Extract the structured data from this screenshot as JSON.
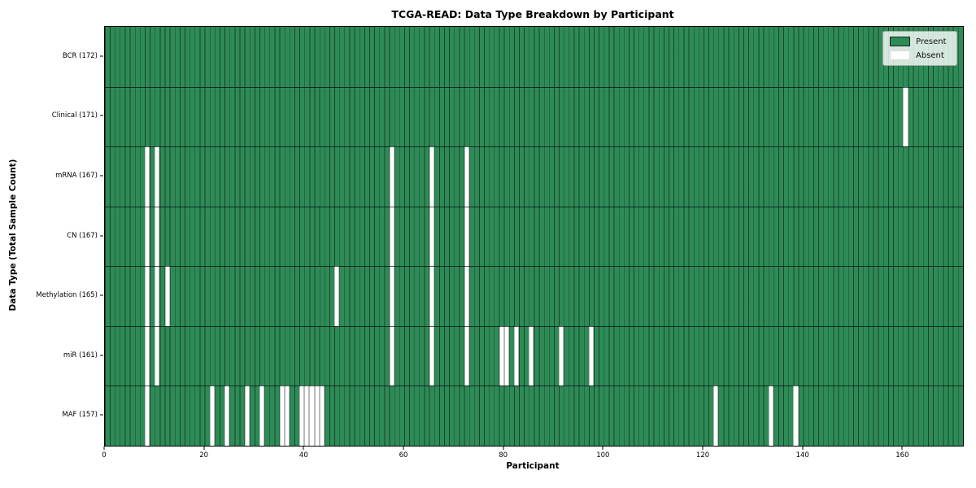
{
  "chart_data": {
    "type": "heatmap",
    "title": "TCGA-READ: Data Type Breakdown by Participant",
    "xlabel": "Participant",
    "ylabel": "Data Type (Total Sample Count)",
    "legend": [
      {
        "label": "Present",
        "color": "#2e8b57"
      },
      {
        "label": "Absent",
        "color": "#ffffff"
      }
    ],
    "legend_position": "upper right",
    "grid": true,
    "x_axis": {
      "min": 0,
      "max": 172,
      "ticks": [
        0,
        20,
        40,
        60,
        80,
        100,
        120,
        140,
        160
      ]
    },
    "n_participants": 172,
    "cell_encoding": "each row lists participant indices whose cell is white (Absent); all other cells are green (Present)",
    "rows": [
      {
        "label": "BCR (172)",
        "data_type": "BCR",
        "total_samples": 172,
        "absent_participants": []
      },
      {
        "label": "Clinical (171)",
        "data_type": "Clinical",
        "total_samples": 171,
        "absent_participants": [
          160
        ]
      },
      {
        "label": "mRNA (167)",
        "data_type": "mRNA",
        "total_samples": 167,
        "absent_participants": [
          8,
          10,
          57,
          65,
          72
        ]
      },
      {
        "label": "CN (167)",
        "data_type": "CN",
        "total_samples": 167,
        "absent_participants": [
          8,
          10,
          57,
          65,
          72
        ]
      },
      {
        "label": "Methylation (165)",
        "data_type": "Methylation",
        "total_samples": 165,
        "absent_participants": [
          8,
          10,
          12,
          46,
          57,
          65,
          72
        ]
      },
      {
        "label": "miR (161)",
        "data_type": "miR",
        "total_samples": 161,
        "absent_participants": [
          8,
          10,
          57,
          65,
          72,
          79,
          80,
          82,
          85,
          91,
          97
        ]
      },
      {
        "label": "MAF (157)",
        "data_type": "MAF",
        "total_samples": 157,
        "absent_participants": [
          8,
          21,
          24,
          28,
          31,
          35,
          36,
          39,
          40,
          41,
          42,
          43,
          122,
          133,
          138
        ]
      }
    ],
    "colors": {
      "present": "#2e8b57",
      "absent": "#ffffff",
      "cell_gridline": "rgba(0,0,0,0.5)",
      "row_divider": "rgba(0,0,0,0.65)",
      "axes_border": "#000000"
    }
  }
}
